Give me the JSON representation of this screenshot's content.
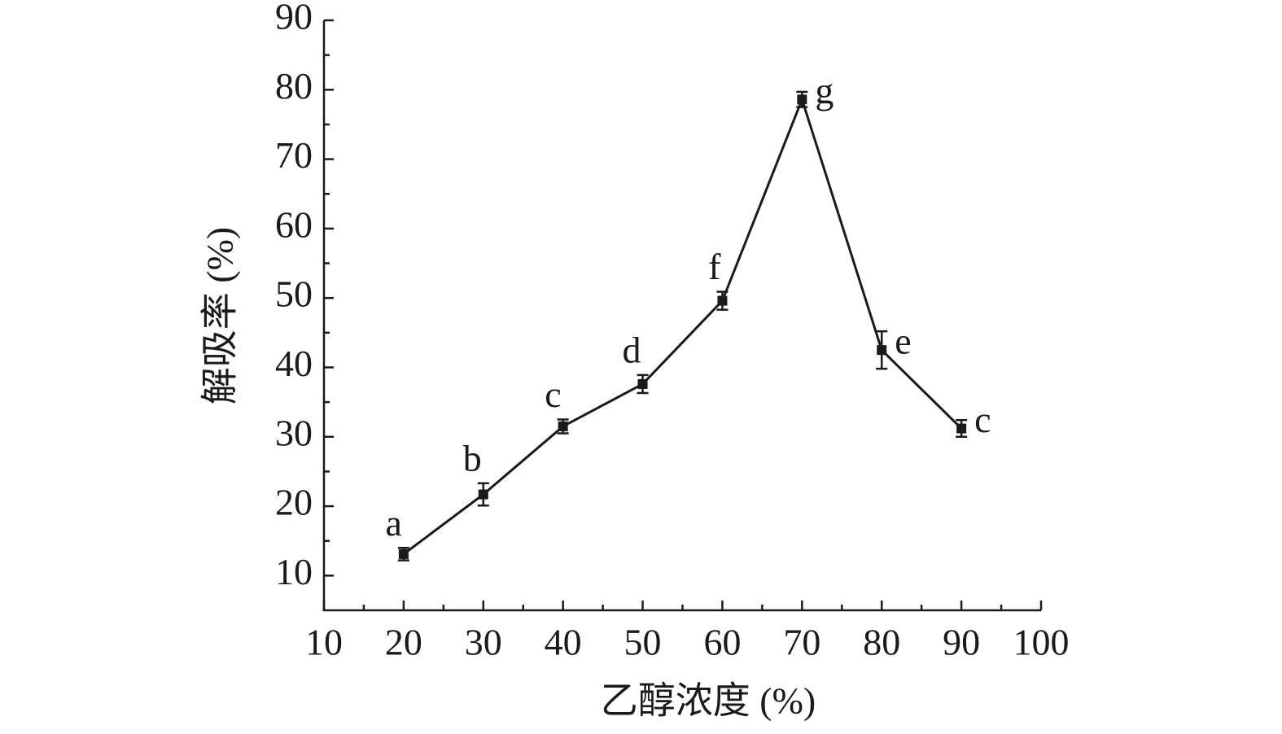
{
  "chart_data": {
    "type": "line",
    "x_label": "乙醇浓度 (%)",
    "y_label": "解吸率 (%)",
    "x": [
      20,
      30,
      40,
      50,
      60,
      70,
      80,
      90
    ],
    "values": [
      13.1,
      21.7,
      31.5,
      37.6,
      49.6,
      78.6,
      42.5,
      31.2
    ],
    "errors": [
      0.9,
      1.6,
      1.0,
      1.3,
      1.3,
      1.1,
      2.7,
      1.2
    ],
    "annotations": [
      "a",
      "b",
      "c",
      "d",
      "f",
      "g",
      "e",
      "c"
    ],
    "color": "#1a1a1a",
    "xlim": [
      10,
      100
    ],
    "xticks": [
      10,
      20,
      30,
      40,
      50,
      60,
      70,
      80,
      90,
      100
    ],
    "xminorticks": [
      15,
      25,
      35,
      45,
      55,
      65,
      75,
      85,
      95
    ],
    "ylim": [
      5,
      90
    ],
    "yticks": [
      10,
      20,
      30,
      40,
      50,
      60,
      70,
      80,
      90
    ],
    "yminorticks": [
      15,
      25,
      35,
      45,
      55,
      65,
      75,
      85
    ]
  }
}
